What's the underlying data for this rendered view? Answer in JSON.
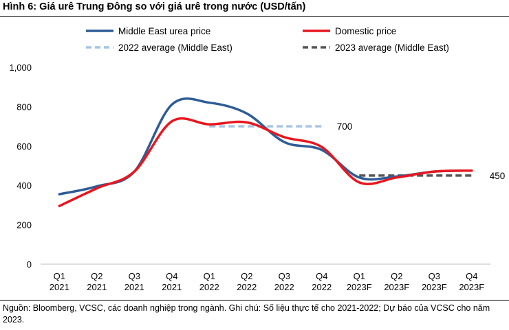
{
  "title": "Hình 6: Giá urê Trung Đông so với giá urê trong nước (USD/tấn)",
  "source": "Nguồn: Bloomberg, VCSC, các doanh nghiệp trong ngành. Ghi chú: Số liệu thực tế cho 2021-2022; Dự báo của VCSC cho năm 2023.",
  "chart_data": {
    "type": "line",
    "title": "Hình 6: Giá urê Trung Đông so với giá urê trong nước (USD/tấn)",
    "xlabel": "",
    "ylabel": "",
    "categories": [
      "Q1 2021",
      "Q2 2021",
      "Q3 2021",
      "Q4 2021",
      "Q1 2022",
      "Q2 2022",
      "Q3 2022",
      "Q4 2022",
      "Q1 2023F",
      "Q2 2023F",
      "Q3 2023F",
      "Q4 2023F"
    ],
    "category_lines": [
      [
        "Q1",
        "2021"
      ],
      [
        "Q2",
        "2021"
      ],
      [
        "Q3",
        "2021"
      ],
      [
        "Q4",
        "2021"
      ],
      [
        "Q1",
        "2022"
      ],
      [
        "Q2",
        "2022"
      ],
      [
        "Q3",
        "2022"
      ],
      [
        "Q4",
        "2022"
      ],
      [
        "Q1",
        "2023F"
      ],
      [
        "Q2",
        "2023F"
      ],
      [
        "Q3",
        "2023F"
      ],
      [
        "Q4",
        "2023F"
      ]
    ],
    "ylim": [
      0,
      1000
    ],
    "yticks": [
      0,
      200,
      400,
      600,
      800,
      1000
    ],
    "ytick_labels": [
      "0",
      "200",
      "400",
      "600",
      "800",
      "1,000"
    ],
    "grid": false,
    "legend_position": "top",
    "series": [
      {
        "name": "Middle East urea price",
        "color": "#2e5c96",
        "style": "solid",
        "values": [
          355,
          395,
          470,
          810,
          820,
          765,
          620,
          580,
          440,
          445,
          470,
          475
        ]
      },
      {
        "name": "Domestic price",
        "color": "#e8161e",
        "style": "solid",
        "values": [
          295,
          385,
          470,
          725,
          710,
          720,
          645,
          595,
          415,
          440,
          470,
          475
        ]
      },
      {
        "name": "2022 average (Middle East)",
        "color": "#a6c3e6",
        "style": "dashed",
        "value": 700,
        "label": "700",
        "from": 4,
        "to": 7
      },
      {
        "name": "2023 average (Middle East)",
        "color": "#555555",
        "style": "dashed",
        "value": 450,
        "label": "450",
        "from": 8,
        "to": 11
      }
    ]
  }
}
